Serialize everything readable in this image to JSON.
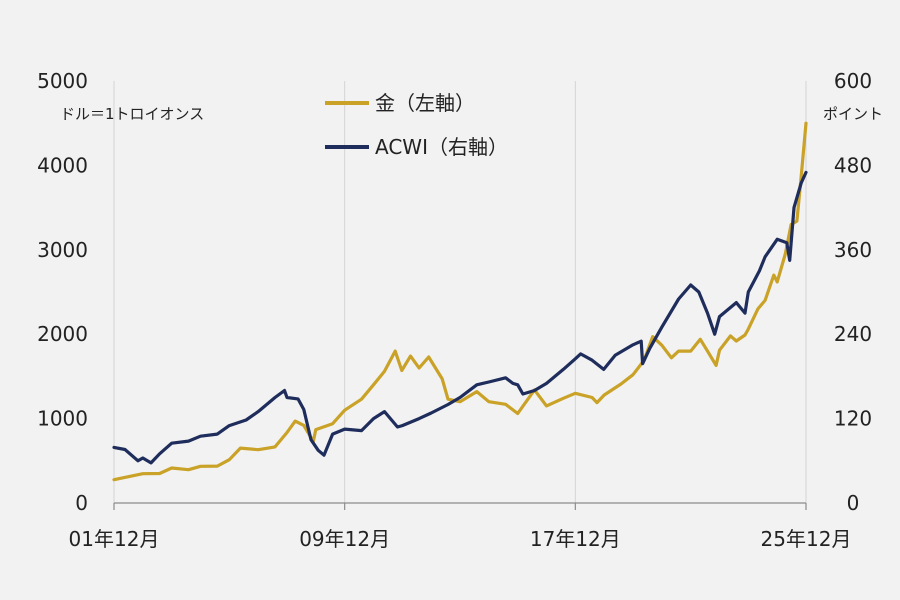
{
  "chart_data": {
    "type": "line",
    "x_tick_labels": [
      "01年12月",
      "09年12月",
      "17年12月",
      "25年12月"
    ],
    "x_range": [
      2001.917,
      2025.917
    ],
    "left_axis": {
      "unit_label": "ドル＝1トロイオンス",
      "ticks": [
        0,
        1000,
        2000,
        3000,
        4000,
        5000
      ],
      "ylim": [
        0,
        5000
      ]
    },
    "right_axis": {
      "unit_label": "ポイント",
      "ticks": [
        0,
        120,
        240,
        360,
        480,
        600
      ],
      "ylim": [
        0,
        600
      ]
    },
    "grid": "vertical",
    "legend_position": "top-center",
    "series": [
      {
        "name": "金（左軸）",
        "axis": "left",
        "color": "#c9a227",
        "points": [
          [
            2001.917,
            276
          ],
          [
            2002.5,
            318
          ],
          [
            2002.917,
            347
          ],
          [
            2003.5,
            350
          ],
          [
            2003.917,
            415
          ],
          [
            2004.5,
            395
          ],
          [
            2004.917,
            435
          ],
          [
            2005.5,
            437
          ],
          [
            2005.917,
            513
          ],
          [
            2006.3,
            650
          ],
          [
            2006.917,
            632
          ],
          [
            2007.5,
            665
          ],
          [
            2007.917,
            835
          ],
          [
            2008.2,
            970
          ],
          [
            2008.5,
            920
          ],
          [
            2008.83,
            730
          ],
          [
            2008.917,
            870
          ],
          [
            2009.5,
            940
          ],
          [
            2009.917,
            1100
          ],
          [
            2010.5,
            1230
          ],
          [
            2010.917,
            1400
          ],
          [
            2011.3,
            1560
          ],
          [
            2011.67,
            1800
          ],
          [
            2011.9,
            1570
          ],
          [
            2012.2,
            1740
          ],
          [
            2012.5,
            1600
          ],
          [
            2012.83,
            1730
          ],
          [
            2013.3,
            1470
          ],
          [
            2013.5,
            1230
          ],
          [
            2013.917,
            1200
          ],
          [
            2014.5,
            1320
          ],
          [
            2014.917,
            1200
          ],
          [
            2015.5,
            1170
          ],
          [
            2015.917,
            1060
          ],
          [
            2016.5,
            1340
          ],
          [
            2016.917,
            1150
          ],
          [
            2017.5,
            1240
          ],
          [
            2017.917,
            1300
          ],
          [
            2018.5,
            1250
          ],
          [
            2018.67,
            1190
          ],
          [
            2018.917,
            1280
          ],
          [
            2019.5,
            1410
          ],
          [
            2019.917,
            1520
          ],
          [
            2020.3,
            1690
          ],
          [
            2020.6,
            1970
          ],
          [
            2020.917,
            1870
          ],
          [
            2021.25,
            1720
          ],
          [
            2021.5,
            1800
          ],
          [
            2021.917,
            1800
          ],
          [
            2022.25,
            1940
          ],
          [
            2022.5,
            1800
          ],
          [
            2022.8,
            1630
          ],
          [
            2022.917,
            1810
          ],
          [
            2023.3,
            1980
          ],
          [
            2023.5,
            1920
          ],
          [
            2023.8,
            1990
          ],
          [
            2023.917,
            2060
          ],
          [
            2024.25,
            2300
          ],
          [
            2024.5,
            2400
          ],
          [
            2024.8,
            2700
          ],
          [
            2024.917,
            2620
          ],
          [
            2025.2,
            2950
          ],
          [
            2025.4,
            3300
          ],
          [
            2025.6,
            3340
          ],
          [
            2025.75,
            3870
          ],
          [
            2025.917,
            4500
          ]
        ]
      },
      {
        "name": "ACWI（右軸）",
        "axis": "right",
        "color": "#1f2d5c",
        "points": [
          [
            2001.917,
            79
          ],
          [
            2002.3,
            76
          ],
          [
            2002.75,
            60
          ],
          [
            2002.917,
            64
          ],
          [
            2003.2,
            57
          ],
          [
            2003.5,
            70
          ],
          [
            2003.917,
            85
          ],
          [
            2004.5,
            88
          ],
          [
            2004.917,
            95
          ],
          [
            2005.5,
            98
          ],
          [
            2005.917,
            110
          ],
          [
            2006.5,
            118
          ],
          [
            2006.917,
            130
          ],
          [
            2007.5,
            150
          ],
          [
            2007.83,
            160
          ],
          [
            2007.917,
            150
          ],
          [
            2008.3,
            148
          ],
          [
            2008.5,
            133
          ],
          [
            2008.75,
            90
          ],
          [
            2009.0,
            75
          ],
          [
            2009.2,
            68
          ],
          [
            2009.5,
            98
          ],
          [
            2009.917,
            105
          ],
          [
            2010.5,
            103
          ],
          [
            2010.917,
            120
          ],
          [
            2011.3,
            130
          ],
          [
            2011.75,
            108
          ],
          [
            2011.917,
            110
          ],
          [
            2012.5,
            120
          ],
          [
            2012.917,
            128
          ],
          [
            2013.5,
            140
          ],
          [
            2013.917,
            150
          ],
          [
            2014.5,
            168
          ],
          [
            2014.917,
            172
          ],
          [
            2015.5,
            178
          ],
          [
            2015.75,
            170
          ],
          [
            2015.917,
            168
          ],
          [
            2016.1,
            155
          ],
          [
            2016.5,
            160
          ],
          [
            2016.917,
            170
          ],
          [
            2017.5,
            190
          ],
          [
            2017.917,
            205
          ],
          [
            2018.1,
            212
          ],
          [
            2018.5,
            203
          ],
          [
            2018.9,
            190
          ],
          [
            2019.3,
            210
          ],
          [
            2019.917,
            225
          ],
          [
            2020.2,
            230
          ],
          [
            2020.25,
            198
          ],
          [
            2020.5,
            220
          ],
          [
            2020.917,
            250
          ],
          [
            2021.5,
            290
          ],
          [
            2021.917,
            310
          ],
          [
            2022.2,
            300
          ],
          [
            2022.5,
            270
          ],
          [
            2022.75,
            240
          ],
          [
            2022.917,
            265
          ],
          [
            2023.5,
            285
          ],
          [
            2023.8,
            270
          ],
          [
            2023.917,
            300
          ],
          [
            2024.3,
            330
          ],
          [
            2024.5,
            350
          ],
          [
            2024.917,
            375
          ],
          [
            2025.25,
            370
          ],
          [
            2025.35,
            345
          ],
          [
            2025.5,
            420
          ],
          [
            2025.75,
            455
          ],
          [
            2025.917,
            470
          ]
        ]
      }
    ]
  }
}
